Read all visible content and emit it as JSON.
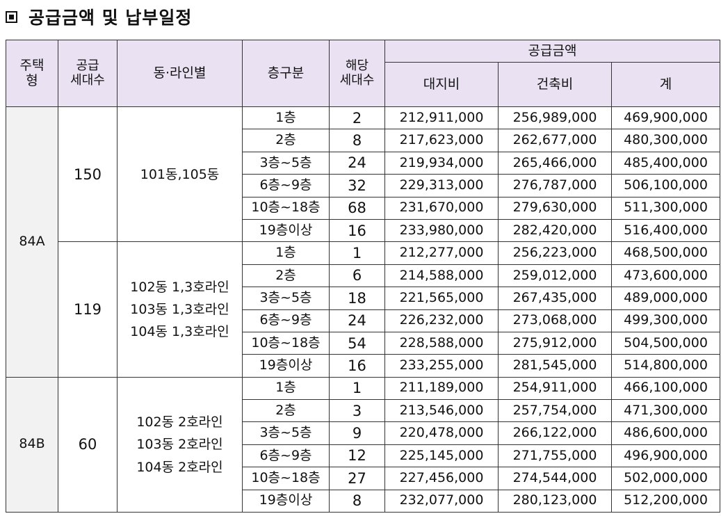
{
  "heading": {
    "icon": "square-bullet-icon",
    "title": "공급금액 및 납부일정"
  },
  "table": {
    "headers": {
      "type_line1": "주택",
      "type_line2": "형",
      "units_line1": "공급",
      "units_line2": "세대수",
      "dong_line": "동·라인별",
      "floor_class": "층구분",
      "applicable_line1": "해당",
      "applicable_line2": "세대수",
      "supply_amount": "공급금액",
      "land_cost": "대지비",
      "building_cost": "건축비",
      "total": "계"
    },
    "groups": [
      {
        "type": "84A",
        "supply_units": "150",
        "dong_lines": [
          "101동,105동"
        ],
        "rows": [
          {
            "floor": "1층",
            "units": "2",
            "land": "212,911,000",
            "building": "256,989,000",
            "total": "469,900,000"
          },
          {
            "floor": "2층",
            "units": "8",
            "land": "217,623,000",
            "building": "262,677,000",
            "total": "480,300,000"
          },
          {
            "floor": "3층~5층",
            "units": "24",
            "land": "219,934,000",
            "building": "265,466,000",
            "total": "485,400,000"
          },
          {
            "floor": "6층~9층",
            "units": "32",
            "land": "229,313,000",
            "building": "276,787,000",
            "total": "506,100,000"
          },
          {
            "floor": "10층~18층",
            "units": "68",
            "land": "231,670,000",
            "building": "279,630,000",
            "total": "511,300,000"
          },
          {
            "floor": "19층이상",
            "units": "16",
            "land": "233,980,000",
            "building": "282,420,000",
            "total": "516,400,000"
          }
        ]
      },
      {
        "type": "84A",
        "supply_units": "119",
        "dong_lines": [
          "102동 1,3호라인",
          "103동 1,3호라인",
          "104동 1,3호라인"
        ],
        "rows": [
          {
            "floor": "1층",
            "units": "1",
            "land": "212,277,000",
            "building": "256,223,000",
            "total": "468,500,000"
          },
          {
            "floor": "2층",
            "units": "6",
            "land": "214,588,000",
            "building": "259,012,000",
            "total": "473,600,000"
          },
          {
            "floor": "3층~5층",
            "units": "18",
            "land": "221,565,000",
            "building": "267,435,000",
            "total": "489,000,000"
          },
          {
            "floor": "6층~9층",
            "units": "24",
            "land": "226,232,000",
            "building": "273,068,000",
            "total": "499,300,000"
          },
          {
            "floor": "10층~18층",
            "units": "54",
            "land": "228,588,000",
            "building": "275,912,000",
            "total": "504,500,000"
          },
          {
            "floor": "19층이상",
            "units": "16",
            "land": "233,255,000",
            "building": "281,545,000",
            "total": "514,800,000"
          }
        ]
      },
      {
        "type": "84B",
        "supply_units": "60",
        "dong_lines": [
          "102동 2호라인",
          "103동 2호라인",
          "104동 2호라인"
        ],
        "rows": [
          {
            "floor": "1층",
            "units": "1",
            "land": "211,189,000",
            "building": "254,911,000",
            "total": "466,100,000"
          },
          {
            "floor": "2층",
            "units": "3",
            "land": "213,546,000",
            "building": "257,754,000",
            "total": "471,300,000"
          },
          {
            "floor": "3층~5층",
            "units": "9",
            "land": "220,478,000",
            "building": "266,122,000",
            "total": "486,600,000"
          },
          {
            "floor": "6층~9층",
            "units": "12",
            "land": "225,145,000",
            "building": "271,755,000",
            "total": "496,900,000"
          },
          {
            "floor": "10층~18층",
            "units": "27",
            "land": "227,456,000",
            "building": "274,544,000",
            "total": "502,000,000"
          },
          {
            "floor": "19층이상",
            "units": "8",
            "land": "232,077,000",
            "building": "280,123,000",
            "total": "512,200,000"
          }
        ]
      }
    ]
  }
}
